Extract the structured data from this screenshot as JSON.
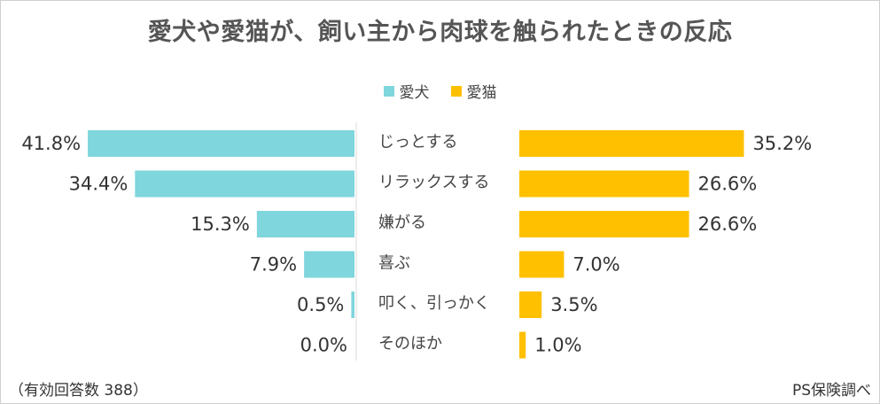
{
  "chart_data": {
    "type": "bar",
    "orientation": "horizontal-butterfly",
    "title": "愛犬や愛猫が、飼い主から肉球を触られたときの反応",
    "categories": [
      "じっとする",
      "リラックスする",
      "嫌がる",
      "喜ぶ",
      "叩く、引っかく",
      "そのほか"
    ],
    "series": [
      {
        "name": "愛犬",
        "color": "#7fd6dc",
        "values": [
          41.8,
          34.4,
          15.3,
          7.9,
          0.5,
          0.0
        ],
        "labels": [
          "41.8%",
          "34.4%",
          "15.3%",
          "7.9%",
          "0.5%",
          "0.0%"
        ]
      },
      {
        "name": "愛猫",
        "color": "#ffc000",
        "values": [
          35.2,
          26.6,
          26.6,
          7.0,
          3.5,
          1.0
        ],
        "labels": [
          "35.2%",
          "26.6%",
          "26.6%",
          "7.0%",
          "3.5%",
          "1.0%"
        ]
      }
    ],
    "xlim": [
      0,
      42
    ],
    "legend": "top-center"
  },
  "footer": {
    "note": "（有効回答数 388）",
    "source": "PS保険調べ"
  }
}
